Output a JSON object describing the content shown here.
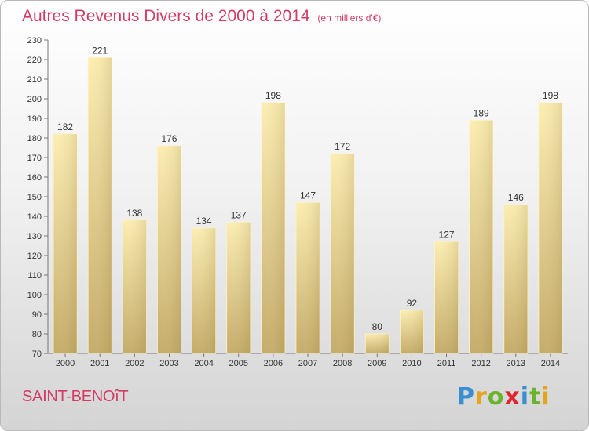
{
  "title": "Autres Revenus Divers de 2000 à 2014",
  "subtitle": "(en milliers d'€)",
  "commune": "SAINT-BENOîT",
  "logo": {
    "text": "Proxiti",
    "colors": [
      "#3a8fd0",
      "#e5a41c",
      "#6ab42d",
      "#e0252f",
      "#3a8fd0",
      "#6ab42d",
      "#e5a41c"
    ]
  },
  "colors": {
    "title": "#d23c64",
    "bar_light": "#fcedb0",
    "bar_dark": "#c4ab68"
  },
  "chart_data": {
    "type": "bar",
    "categories": [
      "2000",
      "2001",
      "2002",
      "2003",
      "2004",
      "2005",
      "2006",
      "2007",
      "2008",
      "2009",
      "2010",
      "2011",
      "2012",
      "2013",
      "2014"
    ],
    "values": [
      182,
      221,
      138,
      176,
      134,
      137,
      198,
      147,
      172,
      80,
      92,
      127,
      189,
      146,
      198
    ],
    "ylim": [
      70,
      230
    ],
    "yticks": [
      70,
      80,
      90,
      100,
      110,
      120,
      130,
      140,
      150,
      160,
      170,
      180,
      190,
      200,
      210,
      220,
      230
    ],
    "grid": false,
    "xlabel": "",
    "ylabel": ""
  }
}
